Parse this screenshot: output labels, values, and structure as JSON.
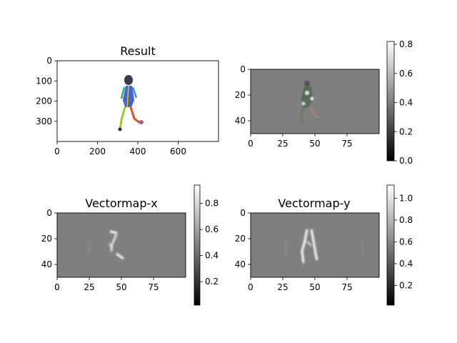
{
  "chart_data": [
    {
      "type": "image",
      "title": "Result",
      "x_ticks": [
        "0",
        "200",
        "400",
        "600"
      ],
      "y_ticks": [
        "0",
        "100",
        "200",
        "300"
      ],
      "x_tick_values": [
        0,
        200,
        400,
        600
      ],
      "y_tick_values": [
        0,
        100,
        200,
        300
      ],
      "xlim": [
        0,
        800
      ],
      "ylim": [
        400,
        0
      ],
      "content": "color skeleton overlay of a walking person",
      "colorbar": null
    },
    {
      "type": "heatmap",
      "title": "",
      "x_ticks": [
        "0",
        "25",
        "50",
        "75"
      ],
      "y_ticks": [
        "0",
        "20",
        "40"
      ],
      "x_tick_values": [
        0,
        25,
        50,
        75
      ],
      "y_tick_values": [
        0,
        20,
        40
      ],
      "xlim": [
        0,
        100
      ],
      "ylim": [
        50,
        0
      ],
      "colormap": "gray",
      "colorbar": {
        "min": 0.0,
        "max": 0.82,
        "ticks": [
          "0.0",
          "0.2",
          "0.4",
          "0.6",
          "0.8"
        ],
        "tick_values": [
          0.0,
          0.2,
          0.4,
          0.6,
          0.8
        ]
      }
    },
    {
      "type": "heatmap",
      "title": "Vectormap-x",
      "x_ticks": [
        "0",
        "25",
        "50",
        "75"
      ],
      "y_ticks": [
        "0",
        "20",
        "40"
      ],
      "x_tick_values": [
        0,
        25,
        50,
        75
      ],
      "y_tick_values": [
        0,
        20,
        40
      ],
      "xlim": [
        0,
        100
      ],
      "ylim": [
        50,
        0
      ],
      "colormap": "gray",
      "colorbar": {
        "min": 0.02,
        "max": 0.94,
        "ticks": [
          "0.2",
          "0.4",
          "0.6",
          "0.8"
        ],
        "tick_values": [
          0.2,
          0.4,
          0.6,
          0.8
        ]
      }
    },
    {
      "type": "heatmap",
      "title": "Vectormap-y",
      "x_ticks": [
        "0",
        "25",
        "50",
        "75"
      ],
      "y_ticks": [
        "0",
        "20",
        "40"
      ],
      "x_tick_values": [
        0,
        25,
        50,
        75
      ],
      "y_tick_values": [
        0,
        20,
        40
      ],
      "xlim": [
        0,
        100
      ],
      "ylim": [
        50,
        0
      ],
      "colormap": "gray",
      "colorbar": {
        "min": 0.02,
        "max": 1.12,
        "ticks": [
          "0.2",
          "0.4",
          "0.6",
          "0.8",
          "1.0"
        ],
        "tick_values": [
          0.2,
          0.4,
          0.6,
          0.8,
          1.0
        ]
      }
    }
  ]
}
